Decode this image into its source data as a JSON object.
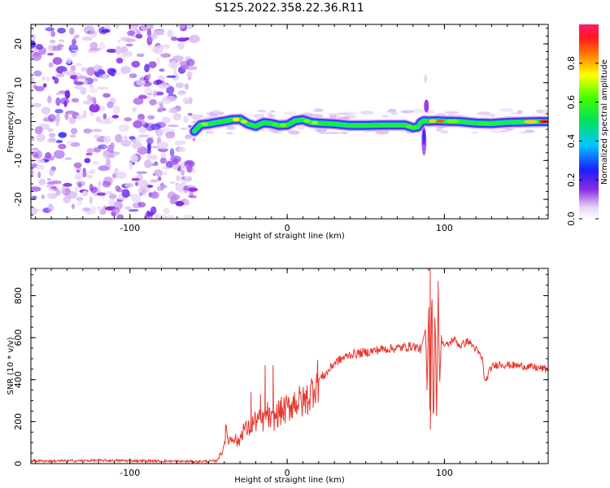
{
  "title": "S125.2022.358.22.36.R11",
  "colors": {
    "snr_line": "#e8382e",
    "ridge_core": "#ff1a1a",
    "noise": "#8a2be2"
  },
  "colorbar": {
    "label": "Normalized spectral amplitude",
    "ticks": [
      "0.0",
      "0.2",
      "0.4",
      "0.6",
      "0.8"
    ],
    "tick_values": [
      0.0,
      0.2,
      0.4,
      0.6,
      0.8
    ],
    "range": [
      0,
      1
    ],
    "colormap": "rainbow (white → violet → blue → cyan → green → yellow → orange → red → magenta)"
  },
  "chart_data": [
    {
      "type": "heatmap",
      "title": "S125.2022.358.22.36.R11",
      "xlabel": "Height of straight line (km)",
      "ylabel": "Frequency (Hz)",
      "xlim": [
        -163,
        166
      ],
      "ylim": [
        -25,
        25
      ],
      "x_ticks": [
        "-100",
        "0",
        "100"
      ],
      "x_tick_values": [
        -100,
        0,
        100
      ],
      "y_ticks": [
        "-20",
        "-10",
        "0",
        "10",
        "20"
      ],
      "y_tick_values": [
        -20,
        -10,
        0,
        10,
        20
      ],
      "noise_region_x": [
        -163,
        -59
      ],
      "ridge": {
        "x": [
          -59,
          -55,
          -50,
          -45,
          -40,
          -35,
          -30,
          -25,
          -20,
          -15,
          -10,
          -5,
          0,
          5,
          10,
          15,
          20,
          30,
          40,
          50,
          60,
          70,
          75,
          80,
          83,
          85,
          87,
          90,
          95,
          100,
          110,
          120,
          130,
          140,
          150,
          160,
          166
        ],
        "y": [
          -2.5,
          -0.8,
          -0.6,
          -0.2,
          0.1,
          0.5,
          0.6,
          -0.6,
          -1.2,
          -0.3,
          -0.5,
          -1.0,
          -0.9,
          0.2,
          0.5,
          -0.2,
          -0.4,
          -0.6,
          -1.0,
          -1.0,
          -0.9,
          -0.9,
          -0.9,
          -1.6,
          -1.4,
          -0.2,
          0.2,
          0.1,
          0.2,
          0.1,
          0.0,
          -0.4,
          -0.5,
          -0.2,
          -0.1,
          0.0,
          0.0
        ],
        "amplitude": [
          0.15,
          0.85,
          0.5,
          0.55,
          0.45,
          0.6,
          0.9,
          0.5,
          0.5,
          0.55,
          0.5,
          0.7,
          0.6,
          0.4,
          0.5,
          0.8,
          0.55,
          0.5,
          0.45,
          0.55,
          0.5,
          0.5,
          0.5,
          0.75,
          0.5,
          0.4,
          0.5,
          0.6,
          0.95,
          0.8,
          0.5,
          0.55,
          0.6,
          0.5,
          0.6,
          0.95,
          0.9
        ]
      },
      "disturbance": {
        "x": 87,
        "y_range": [
          -11,
          12
        ]
      }
    },
    {
      "type": "line",
      "xlabel": "Height of straight line (km)",
      "ylabel": "SNR (10 * v/v)",
      "xlim": [
        -163,
        166
      ],
      "ylim": [
        0,
        930
      ],
      "x_ticks": [
        "-100",
        "0",
        "100"
      ],
      "x_tick_values": [
        -100,
        0,
        100
      ],
      "y_ticks": [
        "0",
        "200",
        "400",
        "600",
        "800"
      ],
      "y_tick_values": [
        0,
        200,
        400,
        600,
        800
      ],
      "series": [
        {
          "x": [
            -163,
            -150,
            -120,
            -90,
            -60,
            -45,
            -41,
            -39,
            -37,
            -34,
            -31,
            -28,
            -25,
            -22,
            -19,
            -16,
            -13,
            -10,
            -5,
            0,
            5,
            10,
            15,
            17,
            20,
            25,
            30,
            40,
            50,
            60,
            70,
            80,
            85,
            88,
            89,
            90,
            91,
            92,
            93,
            94,
            95,
            96,
            97,
            98,
            100,
            103,
            106,
            110,
            115,
            120,
            124,
            126,
            128,
            130,
            135,
            140,
            150,
            160,
            166
          ],
          "y": [
            14,
            12,
            15,
            13,
            10,
            12,
            60,
            150,
            110,
            130,
            95,
            170,
            160,
            190,
            210,
            195,
            240,
            200,
            245,
            260,
            300,
            290,
            330,
            380,
            400,
            430,
            480,
            520,
            530,
            545,
            550,
            560,
            545,
            640,
            350,
            780,
            80,
            900,
            120,
            760,
            200,
            820,
            380,
            600,
            560,
            570,
            595,
            560,
            585,
            545,
            500,
            380,
            430,
            460,
            475,
            470,
            465,
            455,
            450
          ]
        }
      ],
      "spikes": [
        {
          "x": -23,
          "y": 340
        },
        {
          "x": -17,
          "y": 330
        },
        {
          "x": -14,
          "y": 470
        },
        {
          "x": -9,
          "y": 470
        },
        {
          "x": 91,
          "y": 930
        },
        {
          "x": 96,
          "y": 870
        }
      ]
    }
  ]
}
